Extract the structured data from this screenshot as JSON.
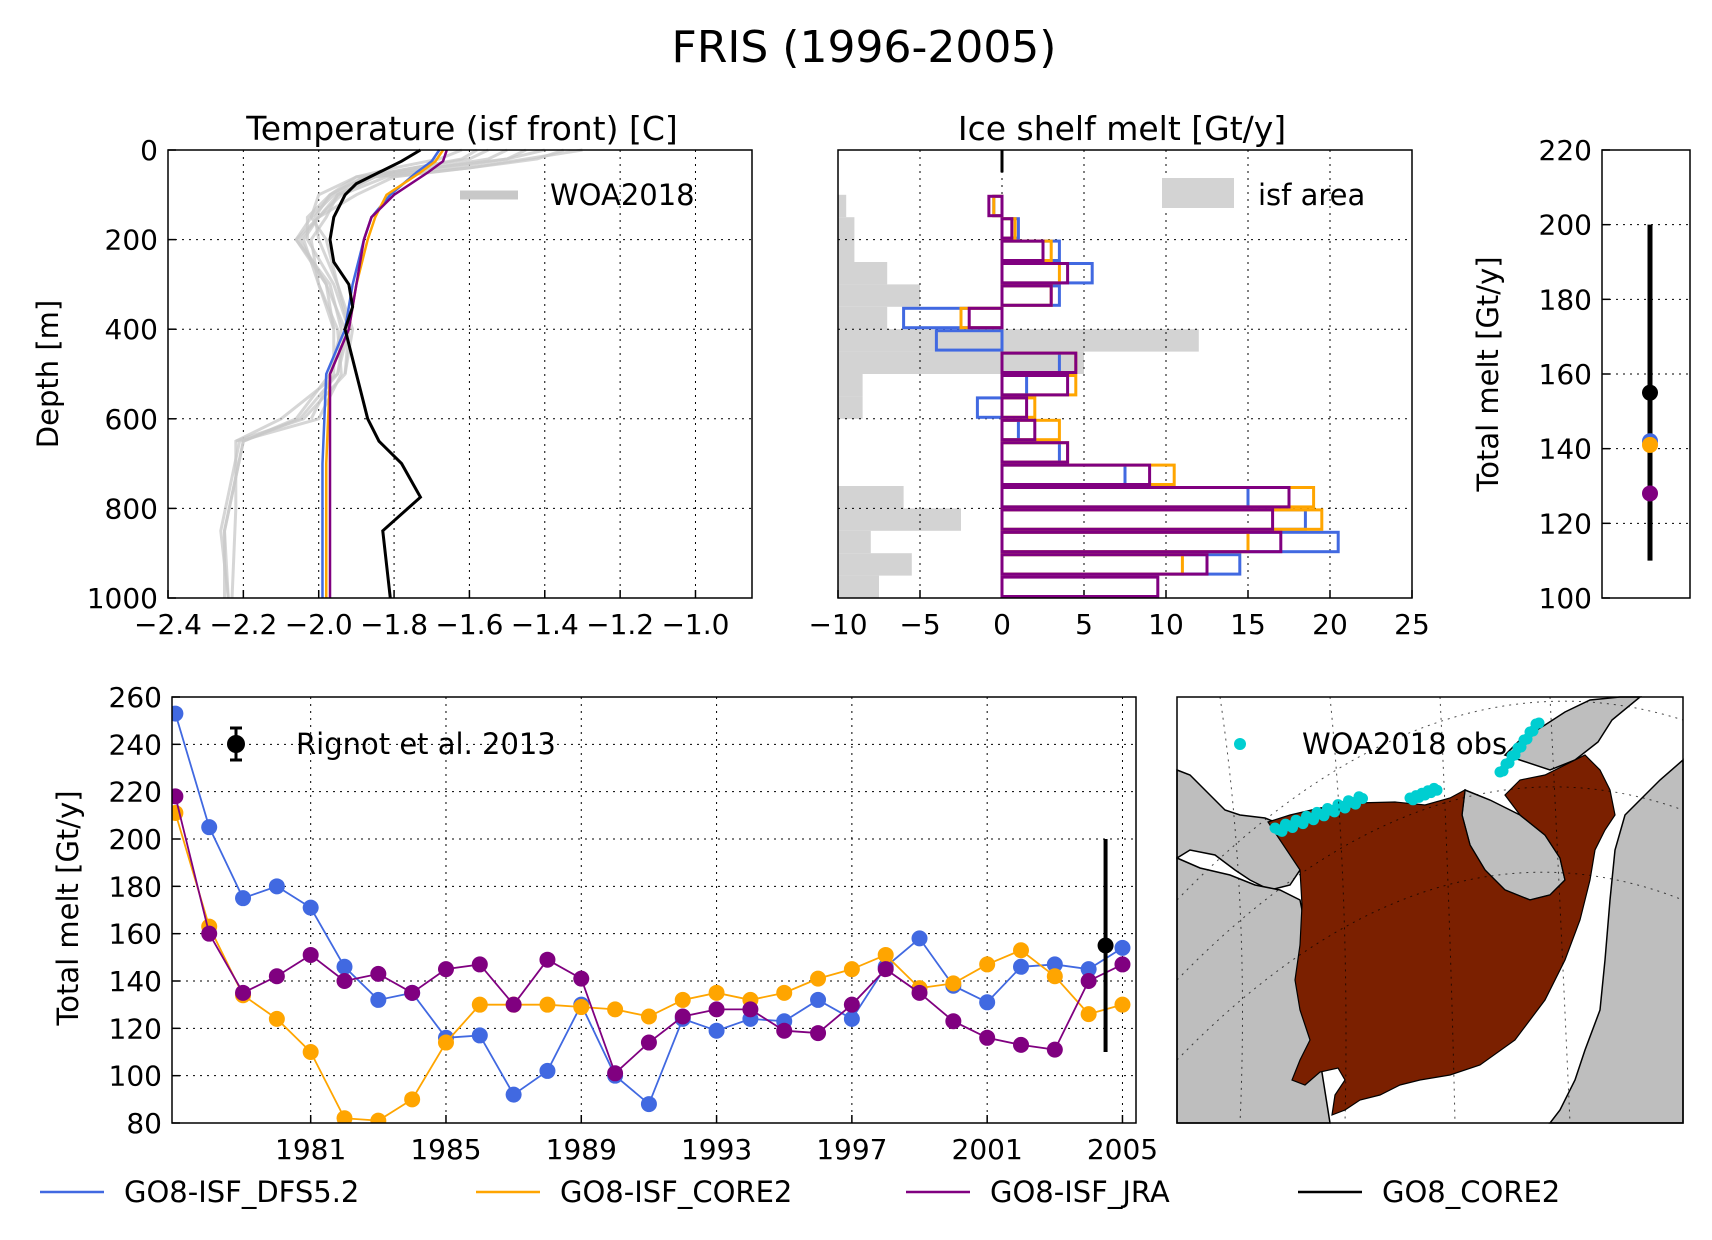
{
  "figure": {
    "title": "FRIS (1996-2005)"
  },
  "colors": {
    "DFS": "#4169e1",
    "CORE2": "#ffa500",
    "JRA": "#800080",
    "GO8": "#000000",
    "woa": "#c8c8c8",
    "area": "#d3d3d3",
    "obs": "#00ced1",
    "shelf": "#7b2000",
    "land": "#bebebe"
  },
  "legend_bottom": [
    "GO8-ISF_DFS5.2",
    "GO8-ISF_CORE2",
    "GO8-ISF_JRA",
    "GO8_CORE2"
  ],
  "map": {
    "legend": "WOA2018 obs"
  },
  "chart_data": [
    {
      "id": "temperature",
      "type": "line",
      "title": "Temperature (isf front) [C]",
      "ylabel": "Depth [m]",
      "xlabel": "",
      "xlim": [
        -2.4,
        -0.85
      ],
      "ylim": [
        1000,
        0
      ],
      "xticks": [
        -2.4,
        -2.2,
        -2.0,
        -1.8,
        -1.6,
        -1.4,
        -1.2,
        -1.0
      ],
      "xtick_labels": [
        "−2.4",
        "−2.2",
        "−2.0",
        "−1.8",
        "−1.6",
        "−1.4",
        "−1.2",
        "−1.0"
      ],
      "yticks": [
        0,
        200,
        400,
        600,
        800,
        1000
      ],
      "ytick_labels": [
        "0",
        "200",
        "400",
        "600",
        "800",
        "1000"
      ],
      "grid": true,
      "legend": {
        "label": "WOA2018",
        "position": "top-right"
      },
      "series": [
        {
          "name": "GO8-ISF_DFS5.2",
          "color": "DFS",
          "depth": [
            0,
            25,
            50,
            100,
            150,
            200,
            300,
            400,
            500,
            700,
            800,
            1000
          ],
          "values": [
            -1.68,
            -1.7,
            -1.74,
            -1.81,
            -1.86,
            -1.88,
            -1.91,
            -1.93,
            -1.98,
            -1.99,
            -1.99,
            -1.99
          ]
        },
        {
          "name": "GO8-ISF_CORE2",
          "color": "CORE2",
          "depth": [
            0,
            25,
            50,
            100,
            150,
            200,
            300,
            400,
            500,
            700,
            800,
            1000
          ],
          "values": [
            -1.67,
            -1.69,
            -1.73,
            -1.82,
            -1.85,
            -1.87,
            -1.9,
            -1.92,
            -1.97,
            -1.98,
            -1.98,
            -1.98
          ]
        },
        {
          "name": "GO8-ISF_JRA",
          "color": "JRA",
          "depth": [
            0,
            25,
            50,
            100,
            150,
            200,
            300,
            400,
            500,
            700,
            800,
            1000
          ],
          "values": [
            -1.66,
            -1.67,
            -1.71,
            -1.8,
            -1.86,
            -1.88,
            -1.9,
            -1.92,
            -1.97,
            -1.97,
            -1.97,
            -1.97
          ]
        },
        {
          "name": "GO8_CORE2",
          "color": "GO8",
          "depth": [
            0,
            25,
            50,
            75,
            100,
            150,
            200,
            250,
            300,
            350,
            400,
            500,
            600,
            650,
            700,
            775,
            850,
            1000
          ],
          "values": [
            -1.73,
            -1.78,
            -1.84,
            -1.9,
            -1.93,
            -1.96,
            -1.97,
            -1.96,
            -1.92,
            -1.91,
            -1.93,
            -1.9,
            -1.87,
            -1.84,
            -1.78,
            -1.73,
            -1.83,
            -1.81
          ]
        }
      ],
      "woa_profiles": [
        {
          "depth": [
            0,
            20,
            40,
            60,
            100,
            150,
            200,
            300,
            400,
            500,
            600,
            650,
            850,
            1000
          ],
          "values": [
            -1.5,
            -1.55,
            -1.7,
            -1.85,
            -1.95,
            -2.0,
            -2.05,
            -1.98,
            -1.93,
            -1.95,
            -2.05,
            -2.2,
            -2.25,
            -2.24
          ]
        },
        {
          "depth": [
            0,
            20,
            40,
            60,
            100,
            150,
            200,
            300,
            400,
            500,
            600,
            650,
            800,
            1000
          ],
          "values": [
            -1.62,
            -1.68,
            -1.8,
            -1.9,
            -2.0,
            -2.02,
            -1.98,
            -1.95,
            -1.92,
            -1.95,
            -2.1,
            -2.22,
            -2.22,
            -2.23
          ]
        },
        {
          "depth": [
            0,
            20,
            40,
            60,
            100,
            150,
            200,
            300,
            400,
            500,
            600,
            650,
            850,
            1000
          ],
          "values": [
            -1.4,
            -1.5,
            -1.65,
            -1.85,
            -1.95,
            -1.98,
            -2.02,
            -2.0,
            -1.95,
            -1.94,
            -2.0,
            -2.21,
            -2.26,
            -2.24
          ]
        },
        {
          "depth": [
            0,
            20,
            40,
            60,
            100,
            150,
            200,
            300,
            400,
            500,
            600
          ],
          "values": [
            -1.3,
            -1.45,
            -1.6,
            -1.8,
            -1.9,
            -2.0,
            -2.04,
            -2.0,
            -1.96,
            -1.96,
            -2.02
          ]
        },
        {
          "depth": [
            0,
            20,
            40,
            60,
            100,
            150,
            200,
            300,
            400,
            500,
            600,
            650,
            850,
            1000
          ],
          "values": [
            -1.55,
            -1.6,
            -1.75,
            -1.88,
            -1.96,
            -2.02,
            -2.06,
            -1.97,
            -1.94,
            -1.97,
            -2.06,
            -2.2,
            -2.25,
            -2.25
          ]
        },
        {
          "depth": [
            0,
            20,
            40,
            60,
            100,
            150,
            200,
            300,
            400,
            500
          ],
          "values": [
            -1.45,
            -1.5,
            -1.7,
            -1.9,
            -1.97,
            -2.03,
            -2.03,
            -1.96,
            -1.92,
            -1.93
          ]
        },
        {
          "depth": [
            0,
            20,
            40,
            60,
            100,
            150,
            200,
            300,
            400
          ],
          "values": [
            -1.35,
            -1.42,
            -1.6,
            -1.82,
            -1.94,
            -2.0,
            -2.06,
            -1.98,
            -1.96
          ]
        },
        {
          "depth": [
            0,
            20,
            40,
            60,
            100,
            150,
            200,
            300,
            400,
            500,
            600,
            650
          ],
          "values": [
            -1.58,
            -1.62,
            -1.75,
            -1.88,
            -1.97,
            -2.01,
            -2.0,
            -1.95,
            -1.91,
            -1.93,
            -2.04,
            -2.22
          ]
        }
      ]
    },
    {
      "id": "melt_profile",
      "type": "bar",
      "title": "Ice shelf melt [Gt/y]",
      "xlabel": "",
      "ylabel": "",
      "xlim": [
        -10,
        25
      ],
      "ylim": [
        1000,
        0
      ],
      "xticks": [
        -10,
        -5,
        0,
        5,
        10,
        15,
        20,
        25
      ],
      "xtick_labels": [
        "−10",
        "−5",
        "0",
        "5",
        "10",
        "15",
        "20",
        "25"
      ],
      "grid": true,
      "legend": {
        "label": "isf area",
        "position": "top-right"
      },
      "bin_edges": [
        0,
        50,
        100,
        150,
        200,
        250,
        300,
        350,
        400,
        450,
        500,
        550,
        600,
        650,
        700,
        750,
        800,
        850,
        900,
        950,
        1000
      ],
      "isf_area": [
        0,
        0,
        0.5,
        1,
        1,
        3,
        5,
        3,
        22,
        15,
        1.5,
        1.5,
        0,
        0,
        0,
        4,
        7.5,
        2,
        4.5,
        2.5
      ],
      "series": [
        {
          "name": "GO8-ISF_DFS5.2",
          "color": "DFS",
          "values": [
            0,
            0,
            -0.5,
            1,
            3.5,
            5.5,
            3.5,
            -6,
            -4,
            3.5,
            1.5,
            -1.5,
            1,
            3.5,
            7.5,
            15,
            18.5,
            20.5,
            14.5,
            0
          ]
        },
        {
          "name": "GO8-ISF_CORE2",
          "color": "CORE2",
          "values": [
            0,
            0,
            -0.5,
            0.8,
            3,
            3.5,
            3,
            -2.5,
            0,
            4.5,
            4.5,
            2,
            3.5,
            4,
            10.5,
            19,
            19.5,
            15,
            11,
            0
          ]
        },
        {
          "name": "GO8-ISF_JRA",
          "color": "JRA",
          "values": [
            0,
            0,
            -0.8,
            0.6,
            2.5,
            4,
            3,
            -2,
            0,
            4.5,
            4,
            1.5,
            2,
            4,
            9,
            17.5,
            16.5,
            17,
            12.5,
            9.5
          ]
        },
        {
          "name": "GO8_CORE2",
          "color": "GO8",
          "values": [
            0,
            0,
            0,
            0,
            0,
            0,
            0,
            0,
            0,
            0,
            0,
            0,
            0,
            0,
            0,
            0,
            0,
            0,
            0,
            0
          ]
        }
      ]
    },
    {
      "id": "total_melt_mean",
      "type": "scatter",
      "ylabel": "Total melt [Gt/y]",
      "xlabel": "",
      "ylim": [
        100,
        220
      ],
      "yticks": [
        100,
        120,
        140,
        160,
        180,
        200,
        220
      ],
      "ytick_labels": [
        "100",
        "120",
        "140",
        "160",
        "180",
        "200",
        "220"
      ],
      "grid": true,
      "errorbar": {
        "value": 155,
        "low": 110,
        "high": 200
      },
      "points": [
        {
          "name": "GO8-ISF_DFS5.2",
          "color": "DFS",
          "value": 142
        },
        {
          "name": "GO8-ISF_CORE2",
          "color": "CORE2",
          "value": 141
        },
        {
          "name": "GO8-ISF_JRA",
          "color": "JRA",
          "value": 128
        },
        {
          "name": "GO8_CORE2",
          "color": "GO8",
          "value": 155
        }
      ]
    },
    {
      "id": "timeseries",
      "type": "line",
      "ylabel": "Total melt [Gt/y]",
      "xlabel": "",
      "xlim": [
        1976.9,
        2005.4
      ],
      "ylim": [
        80,
        260
      ],
      "xticks": [
        1981,
        1985,
        1989,
        1993,
        1997,
        2001,
        2005
      ],
      "xtick_labels": [
        "1981",
        "1985",
        "1989",
        "1993",
        "1997",
        "2001",
        "2005"
      ],
      "yticks": [
        80,
        100,
        120,
        140,
        160,
        180,
        200,
        220,
        240,
        260
      ],
      "ytick_labels": [
        "80",
        "100",
        "120",
        "140",
        "160",
        "180",
        "200",
        "220",
        "240",
        "260"
      ],
      "grid": true,
      "legend": {
        "label": "Rignot et al. 2013",
        "position": "top-left"
      },
      "errorbar": {
        "x": 2004.5,
        "value": 155,
        "low": 110,
        "high": 200
      },
      "x": [
        1977,
        1978,
        1979,
        1980,
        1981,
        1982,
        1983,
        1984,
        1985,
        1986,
        1987,
        1988,
        1989,
        1990,
        1991,
        1992,
        1993,
        1994,
        1995,
        1996,
        1997,
        1998,
        1999,
        2000,
        2001,
        2002,
        2003,
        2004,
        2005
      ],
      "series": [
        {
          "name": "GO8-ISF_DFS5.2",
          "color": "DFS",
          "values": [
            253,
            205,
            175,
            180,
            171,
            146,
            132,
            135,
            116,
            117,
            92,
            102,
            130,
            100,
            88,
            124,
            119,
            124,
            123,
            132,
            124,
            146,
            158,
            138,
            131,
            146,
            147,
            145,
            154
          ]
        },
        {
          "name": "GO8-ISF_CORE2",
          "color": "CORE2",
          "values": [
            211,
            163,
            134,
            124,
            110,
            82,
            81,
            90,
            114,
            130,
            130,
            130,
            129,
            128,
            125,
            132,
            135,
            132,
            135,
            141,
            145,
            151,
            137,
            139,
            147,
            153,
            142,
            126,
            130
          ]
        },
        {
          "name": "GO8-ISF_JRA",
          "color": "JRA",
          "values": [
            218,
            160,
            135,
            142,
            151,
            140,
            143,
            135,
            145,
            147,
            130,
            149,
            141,
            101,
            114,
            125,
            128,
            128,
            119,
            118,
            130,
            145,
            135,
            123,
            116,
            113,
            111,
            140,
            147
          ]
        }
      ]
    }
  ]
}
